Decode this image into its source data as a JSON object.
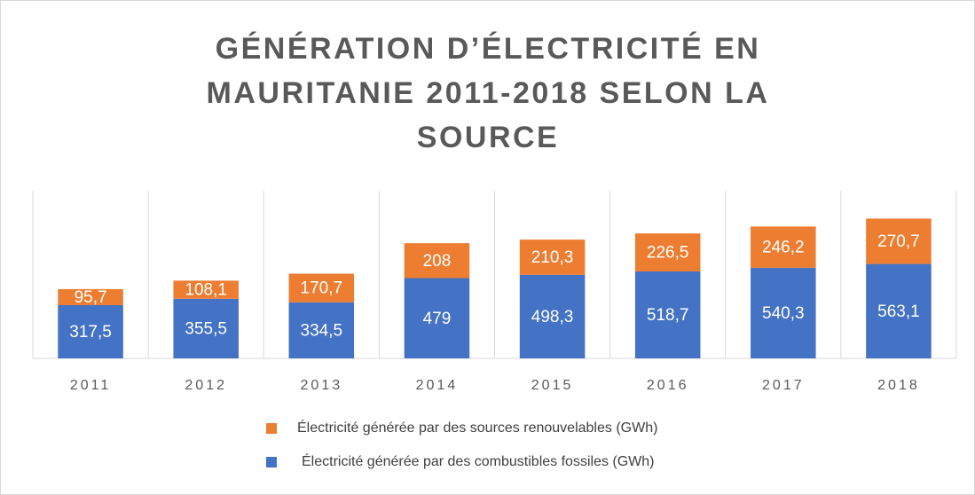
{
  "chart_data": {
    "type": "stacked_bar",
    "title": "GÉNÉRATION D’ÉLECTRICITÉ EN MAURITANIE 2011-2018 SELON LA SOURCE",
    "categories": [
      "2011",
      "2012",
      "2013",
      "2014",
      "2015",
      "2016",
      "2017",
      "2018"
    ],
    "series": [
      {
        "name": "Électricité générée par des combustibles fossiles (GWh)",
        "color": "#4472c4",
        "values": [
          317.5,
          355.5,
          334.5,
          479,
          498.3,
          518.7,
          540.3,
          563.1
        ],
        "value_labels": [
          "317,5",
          "355,5",
          "334,5",
          "479",
          "498,3",
          "518,7",
          "540,3",
          "563,1"
        ]
      },
      {
        "name": "Électricité générée par des sources renouvelables (GWh)",
        "color": "#ed7d31",
        "values": [
          95.7,
          108.1,
          170.7,
          208,
          210.3,
          226.5,
          246.2,
          270.7
        ],
        "value_labels": [
          "95,7",
          "108,1",
          "170,7",
          "208",
          "210,3",
          "226,5",
          "246,2",
          "270,7"
        ]
      }
    ],
    "ylim": [
      0,
      1000
    ]
  }
}
